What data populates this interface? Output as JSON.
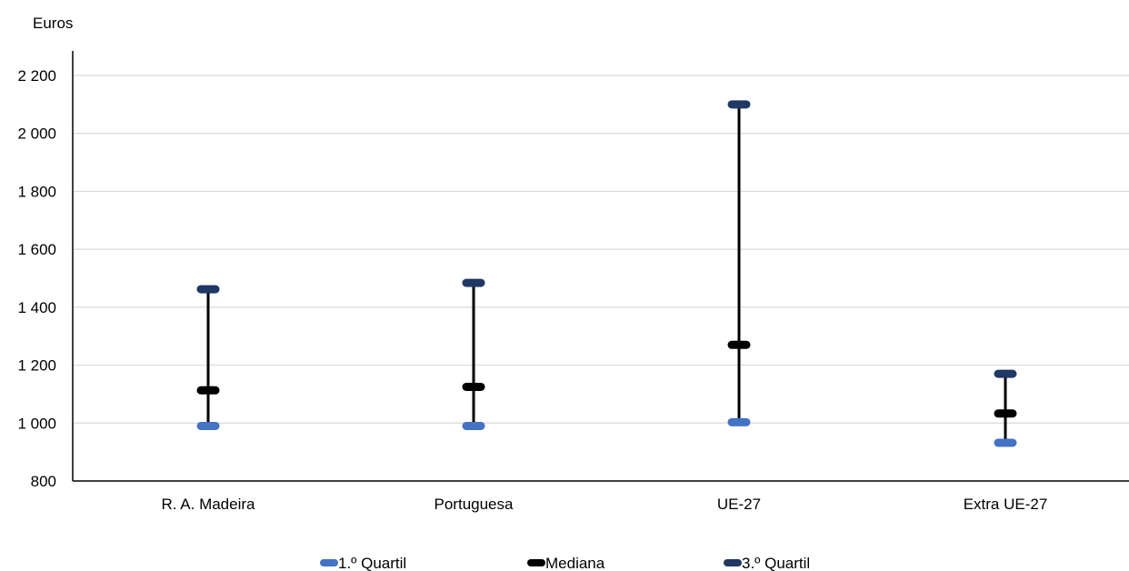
{
  "chart_data": {
    "type": "scatter",
    "title": "",
    "xlabel": "",
    "ylabel": "Euros",
    "categories": [
      "R. A. Madeira",
      "Portuguesa",
      "UE-27",
      "Extra UE-27"
    ],
    "ylim": [
      800,
      2200
    ],
    "yticks": [
      800,
      1000,
      1200,
      1400,
      1600,
      1800,
      2000,
      2200
    ],
    "ytick_labels": [
      "800",
      "1 000",
      "1 200",
      "1 400",
      "1 600",
      "1 800",
      "2 000",
      "2 200"
    ],
    "grid": true,
    "legend_position": "bottom",
    "series": [
      {
        "name": "1.º Quartil",
        "color": "#4472C4",
        "values": [
          990,
          990,
          1003,
          932
        ]
      },
      {
        "name": "Mediana",
        "color": "#000000",
        "values": [
          1113,
          1125,
          1270,
          1033
        ]
      },
      {
        "name": "3.º Quartil",
        "color": "#203864",
        "values": [
          1462,
          1484,
          2100,
          1170
        ]
      }
    ],
    "range_line_color": "#000000"
  }
}
